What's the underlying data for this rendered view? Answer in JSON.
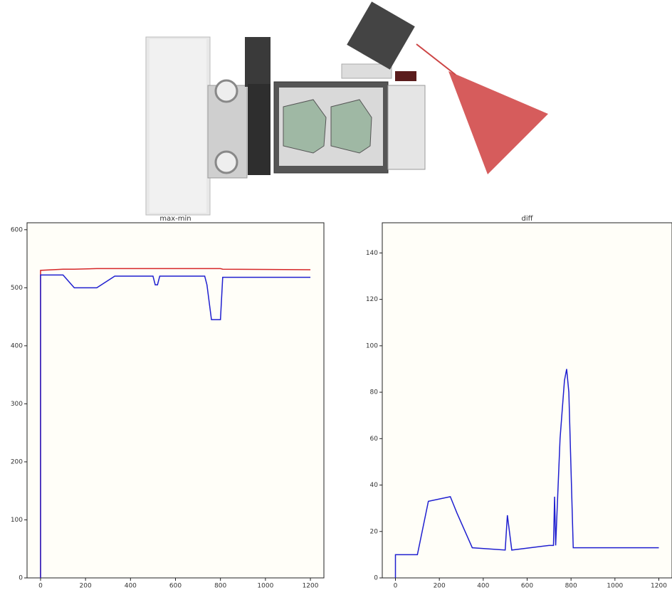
{
  "chart_data": [
    {
      "type": "line",
      "title": "max-min",
      "x": [
        0,
        0,
        100,
        150,
        250,
        330,
        500,
        510,
        520,
        530,
        730,
        740,
        760,
        800,
        810,
        1200
      ],
      "series": [
        {
          "color": "#d62728",
          "values": [
            0,
            530,
            532,
            532,
            533,
            533,
            533,
            533,
            533,
            533,
            533,
            533,
            533,
            533,
            532,
            531
          ]
        },
        {
          "color": "#1f1fd0",
          "values": [
            0,
            522,
            522,
            500,
            500,
            520,
            520,
            505,
            505,
            520,
            520,
            505,
            445,
            445,
            518,
            518
          ]
        }
      ],
      "xlim": [
        -60,
        1260
      ],
      "ylim": [
        0,
        612
      ],
      "xticks": [
        0,
        200,
        400,
        600,
        800,
        1000,
        1200
      ],
      "yticks": [
        0,
        100,
        200,
        300,
        400,
        500,
        600
      ],
      "grid": false
    },
    {
      "type": "line",
      "title": "diff",
      "x": [
        0,
        0,
        100,
        150,
        250,
        280,
        350,
        500,
        510,
        530,
        700,
        720,
        725,
        730,
        750,
        770,
        780,
        790,
        810,
        1200
      ],
      "series": [
        {
          "color": "#1f1fd0",
          "values": [
            0,
            10,
            10,
            33,
            35,
            28,
            13,
            12,
            27,
            12,
            14,
            14,
            35,
            14,
            60,
            85,
            90,
            80,
            13,
            13
          ]
        }
      ],
      "xlim": [
        -60,
        1260
      ],
      "ylim": [
        0,
        153
      ],
      "xticks": [
        0,
        200,
        400,
        600,
        800,
        1000,
        1200
      ],
      "yticks": [
        0,
        20,
        40,
        60,
        80,
        100,
        120,
        140
      ],
      "grid": false
    }
  ]
}
